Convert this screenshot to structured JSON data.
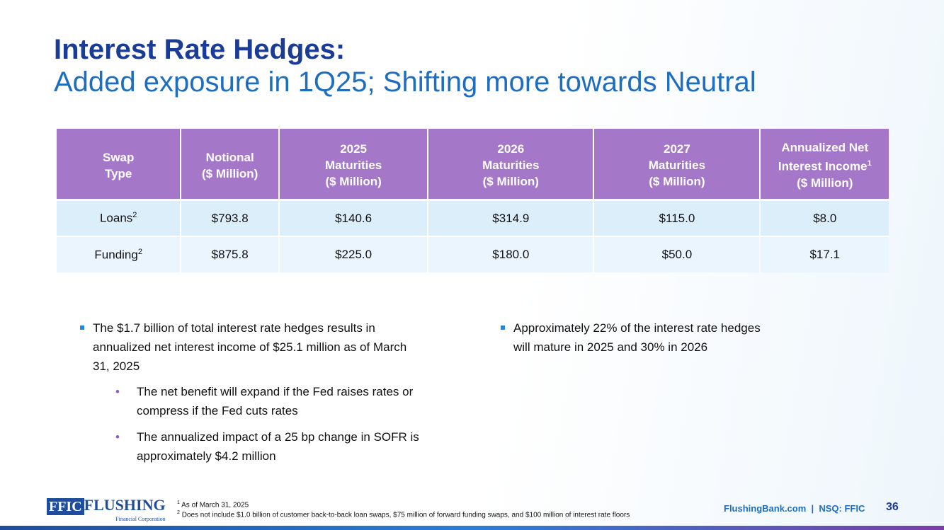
{
  "title": {
    "line1": "Interest Rate Hedges:",
    "line2": "Added exposure in 1Q25; Shifting more towards Neutral"
  },
  "table": {
    "headers": [
      [
        "Swap",
        "Type"
      ],
      [
        "Notional",
        "($ Million)"
      ],
      [
        "2025",
        "Maturities",
        "($ Million)"
      ],
      [
        "2026",
        "Maturities",
        "($ Million)"
      ],
      [
        "2027",
        "Maturities",
        "($ Million)"
      ],
      [
        "Annualized Net",
        "Interest Income",
        "($ Million)"
      ]
    ],
    "header_sup": "1",
    "rows": [
      {
        "type": "Loans",
        "sup": "2",
        "cells": [
          "$793.8",
          "$140.6",
          "$314.9",
          "$115.0",
          "$8.0"
        ]
      },
      {
        "type": "Funding",
        "sup": "2",
        "cells": [
          "$875.8",
          "$225.0",
          "$180.0",
          "$50.0",
          "$17.1"
        ]
      }
    ]
  },
  "bullets": {
    "left": [
      "The $1.7 billion of total interest rate hedges results in",
      "annualized net interest income of $25.1 million as of March",
      "31, 2025"
    ],
    "sub": [
      [
        "The net benefit will expand if the Fed raises rates or",
        "compress if the Fed cuts rates"
      ],
      [
        "The annualized impact of a 25 bp change in SOFR is",
        "approximately $4.2 million"
      ]
    ],
    "right": [
      "Approximately 22% of the interest rate hedges",
      "will mature in 2025 and 30% in 2026"
    ]
  },
  "footer": {
    "logo_ffic": "FFIC",
    "logo_name": "FLUSHING",
    "logo_sub": "Financial Corporation",
    "fn1_sup": "1",
    "fn1": "As of March 31, 2025",
    "fn2_sup": "2",
    "fn2": "Does not include $1.0 billion of customer back-to-back loan swaps, $75 million of forward funding swaps, and $100 million of interest rate floors",
    "site": "FlushingBank.com  |  NSQ: FFIC",
    "page": "36"
  }
}
